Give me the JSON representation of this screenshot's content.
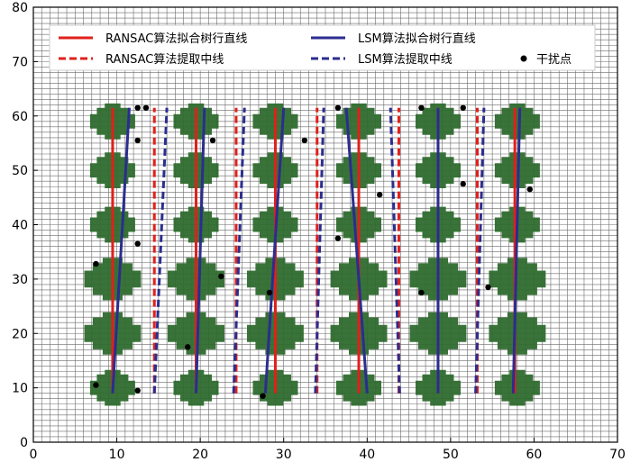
{
  "chart_data": {
    "type": "scatter",
    "xlim": [
      0,
      70
    ],
    "ylim": [
      0,
      80
    ],
    "x_ticks": [
      "0",
      "10",
      "20",
      "30",
      "40",
      "50",
      "60",
      "70"
    ],
    "y_ticks": [
      "0",
      "10",
      "20",
      "30",
      "40",
      "50",
      "60",
      "70",
      "80"
    ],
    "grid": true,
    "legend_position": "top",
    "colors": {
      "ransac": "#e0201b",
      "lsm": "#2b2d8f",
      "crop": "#2e6b2e",
      "grid": "#6b6b6b",
      "point": "#000000"
    },
    "legend": [
      {
        "label": "RANSAC算法拟合树行直线",
        "style": "solid",
        "color": "#e0201b"
      },
      {
        "label": "LSM算法拟合树行直线",
        "style": "solid",
        "color": "#2b2d8f"
      },
      {
        "label": "RANSAC算法提取中线",
        "style": "dashed",
        "color": "#e0201b"
      },
      {
        "label": "LSM算法提取中线",
        "style": "dashed",
        "color": "#2b2d8f"
      },
      {
        "label": "干扰点",
        "style": "point",
        "color": "#000000"
      }
    ],
    "crop_rows": [
      {
        "x": 9.5,
        "y": [
          10,
          20,
          30,
          40,
          50,
          59
        ]
      },
      {
        "x": 19.5,
        "y": [
          10,
          20,
          30,
          40,
          50,
          59
        ]
      },
      {
        "x": 29,
        "y": [
          10,
          20,
          30,
          40,
          50,
          59
        ]
      },
      {
        "x": 39,
        "y": [
          10,
          20,
          30,
          40,
          50,
          59
        ]
      },
      {
        "x": 48.5,
        "y": [
          10,
          20,
          30,
          40,
          50,
          59
        ]
      },
      {
        "x": 58,
        "y": [
          10,
          20,
          30,
          40,
          50,
          59
        ]
      }
    ],
    "ransac_row_lines": [
      {
        "x": [
          9.5,
          9.5
        ],
        "y": [
          9,
          61.5
        ]
      },
      {
        "x": [
          19.5,
          19.5
        ],
        "y": [
          9,
          61.5
        ]
      },
      {
        "x": [
          29,
          29
        ],
        "y": [
          9,
          61.5
        ]
      },
      {
        "x": [
          39,
          39
        ],
        "y": [
          9,
          61.5
        ]
      },
      {
        "x": [
          48.5,
          48.5
        ],
        "y": [
          9,
          61.5
        ]
      },
      {
        "x": [
          57.7,
          57.7
        ],
        "y": [
          9,
          61.5
        ]
      }
    ],
    "lsm_row_lines": [
      {
        "x": [
          9.5,
          11.5
        ],
        "y": [
          9,
          61.5
        ]
      },
      {
        "x": [
          19.5,
          20.5
        ],
        "y": [
          9,
          61.5
        ]
      },
      {
        "x": [
          27.8,
          30
        ],
        "y": [
          9,
          61.5
        ]
      },
      {
        "x": [
          40,
          37.5
        ],
        "y": [
          9,
          61.5
        ]
      },
      {
        "x": [
          48.5,
          48.5
        ],
        "y": [
          9,
          61.5
        ]
      },
      {
        "x": [
          57.5,
          58.3
        ],
        "y": [
          9,
          61.5
        ]
      }
    ],
    "ransac_center_lines": [
      {
        "x": [
          14.5,
          14.5
        ],
        "y": [
          9,
          61.5
        ]
      },
      {
        "x": [
          24.3,
          24.3
        ],
        "y": [
          9,
          61.5
        ]
      },
      {
        "x": [
          34,
          34
        ],
        "y": [
          9,
          61.5
        ]
      },
      {
        "x": [
          43.8,
          43.8
        ],
        "y": [
          9,
          61.5
        ]
      },
      {
        "x": [
          53.2,
          53.2
        ],
        "y": [
          9,
          61.5
        ]
      }
    ],
    "lsm_center_lines": [
      {
        "x": [
          14.5,
          16
        ],
        "y": [
          9,
          61.5
        ]
      },
      {
        "x": [
          24,
          25.3
        ],
        "y": [
          9,
          61.5
        ]
      },
      {
        "x": [
          33.8,
          34.8
        ],
        "y": [
          9,
          61.5
        ]
      },
      {
        "x": [
          43.9,
          42.8
        ],
        "y": [
          9,
          61.5
        ]
      },
      {
        "x": [
          53,
          54
        ],
        "y": [
          9,
          61.5
        ]
      }
    ],
    "interference_points": [
      {
        "x": 7.5,
        "y": 10.5
      },
      {
        "x": 7.5,
        "y": 32.8
      },
      {
        "x": 12.5,
        "y": 61.5
      },
      {
        "x": 13.5,
        "y": 61.5
      },
      {
        "x": 12.5,
        "y": 55.5
      },
      {
        "x": 12.5,
        "y": 36.5
      },
      {
        "x": 12.5,
        "y": 9.5
      },
      {
        "x": 18.5,
        "y": 17.5
      },
      {
        "x": 21.5,
        "y": 55.5
      },
      {
        "x": 22.5,
        "y": 30.5
      },
      {
        "x": 27.5,
        "y": 8.5
      },
      {
        "x": 28.3,
        "y": 27.5
      },
      {
        "x": 32.5,
        "y": 55.5
      },
      {
        "x": 36.5,
        "y": 61.5
      },
      {
        "x": 36.5,
        "y": 37.5
      },
      {
        "x": 41.5,
        "y": 45.5
      },
      {
        "x": 46.5,
        "y": 61.5
      },
      {
        "x": 46.5,
        "y": 27.5
      },
      {
        "x": 51.5,
        "y": 61.5
      },
      {
        "x": 51.5,
        "y": 47.5
      },
      {
        "x": 54.5,
        "y": 28.5
      },
      {
        "x": 59.5,
        "y": 46.5
      }
    ]
  }
}
